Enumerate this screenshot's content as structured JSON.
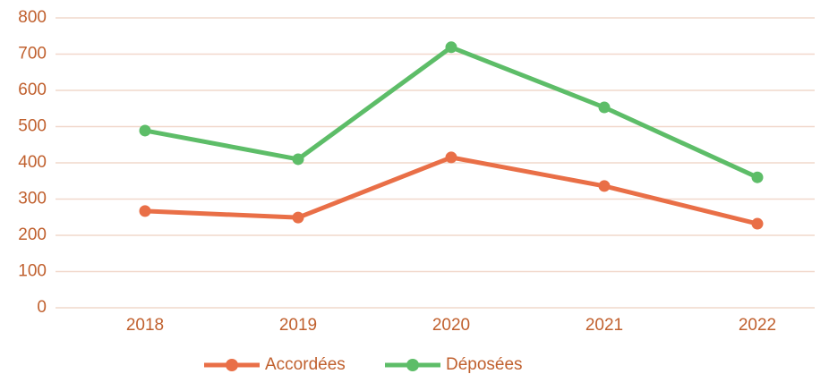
{
  "chart_data": {
    "type": "line",
    "categories": [
      "2018",
      "2019",
      "2020",
      "2021",
      "2022"
    ],
    "series": [
      {
        "name": "Accordées",
        "color": "#e96f47",
        "values": [
          267,
          249,
          415,
          336,
          232
        ]
      },
      {
        "name": "Déposées",
        "color": "#5dbd68",
        "values": [
          489,
          410,
          719,
          553,
          360
        ]
      }
    ],
    "ylim": [
      0,
      800
    ],
    "yticks": [
      0,
      100,
      200,
      300,
      400,
      500,
      600,
      700,
      800
    ],
    "grid": true,
    "legend": "bottom"
  }
}
